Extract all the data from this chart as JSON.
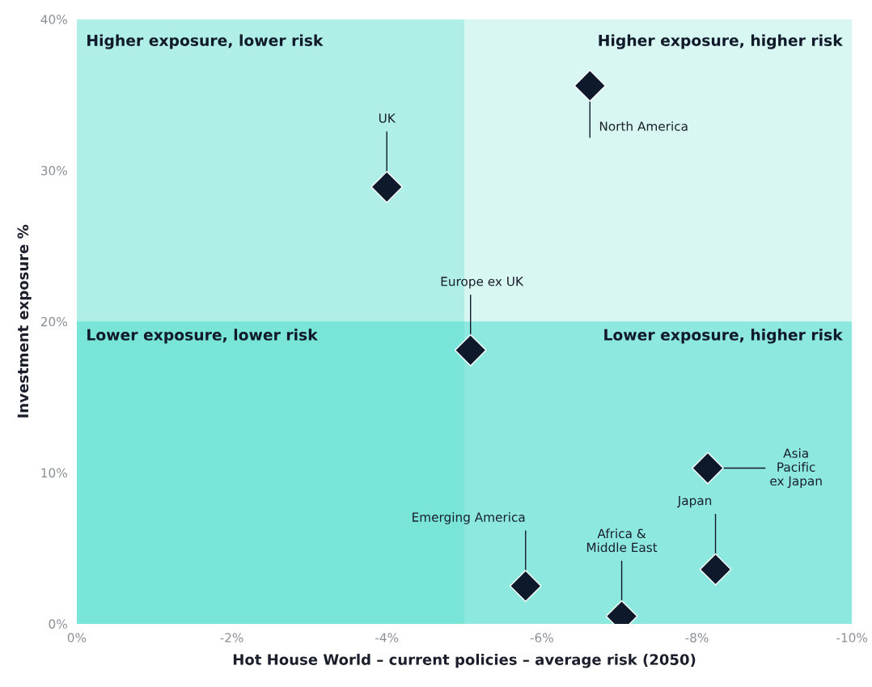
{
  "chart_data": {
    "type": "scatter",
    "xlabel": "Hot House World – current policies – average risk (2050)",
    "ylabel": "Investment exposure %",
    "x": [
      -4.0,
      -6.62,
      -5.08,
      -8.14,
      -8.24,
      -5.79,
      -7.03
    ],
    "values": [
      28.9,
      35.6,
      18.1,
      10.3,
      3.6,
      2.5,
      0.5
    ],
    "color": "#0e1a2c",
    "marker": "diamond",
    "grid": false,
    "xlim": [
      0,
      -10
    ],
    "xticks": [
      {
        "value": 0,
        "label": "0%"
      },
      {
        "value": -2,
        "label": "-2%"
      },
      {
        "value": -4,
        "label": "-4%"
      },
      {
        "value": -6,
        "label": "-6%"
      },
      {
        "value": -8,
        "label": "-8%"
      },
      {
        "value": -10,
        "label": "-10%"
      }
    ],
    "ylim": [
      0,
      40
    ],
    "yticks": [
      {
        "value": 0,
        "label": "0%"
      },
      {
        "value": 10,
        "label": "10%"
      },
      {
        "value": 20,
        "label": "20%"
      },
      {
        "value": 30,
        "label": "30%"
      },
      {
        "value": 40,
        "label": "40%"
      }
    ],
    "bands": [
      {
        "axis": "y",
        "from": 0,
        "to": 40,
        "color": "#d8f7f2"
      },
      {
        "axis": "x",
        "from": 0,
        "to": -5,
        "color": "#88e7dc"
      },
      {
        "axis": "y",
        "from": 0,
        "to": 20,
        "color": "#42dbcc"
      }
    ],
    "annotations": [
      "Higher exposure, lower risk",
      "Higher exposure, higher risk",
      "Lower exposure, lower risk",
      "Lower exposure, higher risk",
      {
        "text": "UK",
        "x": -4.0,
        "y": 28.9
      },
      {
        "text": "North America",
        "x": -6.62,
        "y": 35.6
      },
      {
        "text": "Europe ex UK",
        "x": -5.08,
        "y": 18.1
      },
      {
        "text": "Asia\nPacific\nex Japan",
        "x": -8.14,
        "y": 10.3
      },
      {
        "text": "Japan",
        "x": -8.24,
        "y": 3.6
      },
      {
        "text": "Emerging America",
        "x": -5.79,
        "y": 2.5
      },
      {
        "text": "Africa &\nMiddle East",
        "x": -7.03,
        "y": 0.5
      }
    ]
  }
}
